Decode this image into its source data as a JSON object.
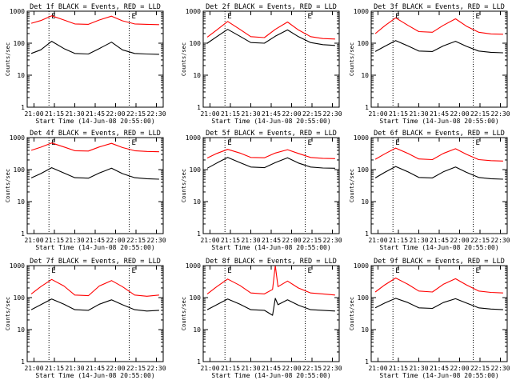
{
  "colors": {
    "events": "#000000",
    "lld": "#ff0000",
    "frame": "#000000",
    "background": "#ffffff"
  },
  "common": {
    "xlabel": "Start Time (14-Jun-08 20:55:00)",
    "ylabel": "Counts/sec",
    "x_tick_labels": [
      "21:00",
      "21:15",
      "21:30",
      "21:45",
      "22:00",
      "22:15",
      "22:30"
    ],
    "y_tick_labels": [
      "1",
      "10",
      "100",
      "1000"
    ],
    "marker_label": "E"
  },
  "chart_data": [
    {
      "type": "line",
      "title": "Det 1f BLACK = Events, RED = LLD",
      "xlim": [
        "20:55",
        "22:35"
      ],
      "ylim": [
        1,
        1000
      ],
      "y_scale": "log",
      "grid": false,
      "event_markers": [
        "21:11",
        "22:10"
      ],
      "series": [
        {
          "color": "#ff0000",
          "x": [
            "20:58",
            "21:05",
            "21:13",
            "21:22",
            "21:30",
            "21:40",
            "21:48",
            "21:57",
            "22:05",
            "22:14",
            "22:23",
            "22:32"
          ],
          "values": [
            420,
            510,
            720,
            530,
            400,
            390,
            530,
            700,
            500,
            400,
            390,
            380
          ]
        },
        {
          "color": "#000000",
          "x": [
            "20:58",
            "21:05",
            "21:13",
            "21:22",
            "21:30",
            "21:40",
            "21:48",
            "21:57",
            "22:05",
            "22:14",
            "22:23",
            "22:32"
          ],
          "values": [
            48,
            62,
            115,
            68,
            48,
            46,
            68,
            108,
            62,
            48,
            46,
            45
          ]
        }
      ]
    },
    {
      "type": "line",
      "title": "Det 2f BLACK = Events, RED = LLD",
      "xlim": [
        "20:55",
        "22:35"
      ],
      "ylim": [
        1,
        1000
      ],
      "y_scale": "log",
      "grid": false,
      "event_markers": [
        "21:11",
        "22:10"
      ],
      "series": [
        {
          "color": "#ff0000",
          "x": [
            "20:58",
            "21:05",
            "21:13",
            "21:22",
            "21:30",
            "21:40",
            "21:48",
            "21:57",
            "22:05",
            "22:14",
            "22:23",
            "22:32"
          ],
          "values": [
            155,
            260,
            480,
            270,
            160,
            150,
            270,
            460,
            260,
            160,
            140,
            135
          ]
        },
        {
          "color": "#000000",
          "x": [
            "20:58",
            "21:05",
            "21:13",
            "21:22",
            "21:30",
            "21:40",
            "21:48",
            "21:57",
            "22:05",
            "22:14",
            "22:23",
            "22:32"
          ],
          "values": [
            100,
            160,
            270,
            165,
            105,
            100,
            165,
            260,
            160,
            105,
            90,
            85
          ]
        }
      ]
    },
    {
      "type": "line",
      "title": "Det 3f BLACK = Events, RED = LLD",
      "xlim": [
        "20:55",
        "22:35"
      ],
      "ylim": [
        1,
        1000
      ],
      "y_scale": "log",
      "grid": false,
      "event_markers": [
        "21:11",
        "22:10"
      ],
      "series": [
        {
          "color": "#ff0000",
          "x": [
            "20:58",
            "21:05",
            "21:13",
            "21:22",
            "21:30",
            "21:40",
            "21:48",
            "21:57",
            "22:05",
            "22:14",
            "22:23",
            "22:32"
          ],
          "values": [
            200,
            350,
            620,
            360,
            230,
            220,
            360,
            580,
            340,
            220,
            195,
            190
          ]
        },
        {
          "color": "#000000",
          "x": [
            "20:58",
            "21:05",
            "21:13",
            "21:22",
            "21:30",
            "21:40",
            "21:48",
            "21:57",
            "22:05",
            "22:14",
            "22:23",
            "22:32"
          ],
          "values": [
            55,
            80,
            120,
            82,
            57,
            55,
            82,
            115,
            80,
            57,
            52,
            50
          ]
        }
      ]
    },
    {
      "type": "line",
      "title": "Det 4f BLACK = Events, RED = LLD",
      "xlim": [
        "20:55",
        "22:35"
      ],
      "ylim": [
        1,
        1000
      ],
      "y_scale": "log",
      "grid": false,
      "event_markers": [
        "21:11",
        "22:10"
      ],
      "series": [
        {
          "color": "#ff0000",
          "x": [
            "20:58",
            "21:05",
            "21:13",
            "21:22",
            "21:30",
            "21:40",
            "21:48",
            "21:57",
            "22:05",
            "22:14",
            "22:23",
            "22:32"
          ],
          "values": [
            400,
            500,
            680,
            510,
            390,
            380,
            510,
            660,
            490,
            390,
            370,
            360
          ]
        },
        {
          "color": "#000000",
          "x": [
            "20:58",
            "21:05",
            "21:13",
            "21:22",
            "21:30",
            "21:40",
            "21:48",
            "21:57",
            "22:05",
            "22:14",
            "22:23",
            "22:32"
          ],
          "values": [
            55,
            75,
            115,
            78,
            56,
            54,
            78,
            110,
            75,
            56,
            52,
            50
          ]
        }
      ]
    },
    {
      "type": "line",
      "title": "Det 5f BLACK = Events, RED = LLD",
      "xlim": [
        "20:55",
        "22:35"
      ],
      "ylim": [
        1,
        1000
      ],
      "y_scale": "log",
      "grid": false,
      "event_markers": [
        "21:11",
        "22:10"
      ],
      "series": [
        {
          "color": "#ff0000",
          "x": [
            "20:58",
            "21:05",
            "21:13",
            "21:22",
            "21:30",
            "21:40",
            "21:48",
            "21:57",
            "22:05",
            "22:14",
            "22:23",
            "22:32"
          ],
          "values": [
            230,
            320,
            430,
            330,
            240,
            235,
            330,
            420,
            320,
            240,
            225,
            220
          ]
        },
        {
          "color": "#000000",
          "x": [
            "20:58",
            "21:05",
            "21:13",
            "21:22",
            "21:30",
            "21:40",
            "21:48",
            "21:57",
            "22:05",
            "22:14",
            "22:23",
            "22:32"
          ],
          "values": [
            110,
            160,
            240,
            165,
            120,
            115,
            165,
            235,
            160,
            120,
            112,
            110
          ]
        }
      ]
    },
    {
      "type": "line",
      "title": "Det 6f BLACK = Events, RED = LLD",
      "xlim": [
        "20:55",
        "22:35"
      ],
      "ylim": [
        1,
        1000
      ],
      "y_scale": "log",
      "grid": false,
      "event_markers": [
        "21:11",
        "22:10"
      ],
      "series": [
        {
          "color": "#ff0000",
          "x": [
            "20:58",
            "21:05",
            "21:13",
            "21:22",
            "21:30",
            "21:40",
            "21:48",
            "21:57",
            "22:05",
            "22:14",
            "22:23",
            "22:32"
          ],
          "values": [
            210,
            310,
            470,
            320,
            215,
            205,
            320,
            450,
            300,
            205,
            190,
            185
          ]
        },
        {
          "color": "#000000",
          "x": [
            "20:58",
            "21:05",
            "21:13",
            "21:22",
            "21:30",
            "21:40",
            "21:48",
            "21:57",
            "22:05",
            "22:14",
            "22:23",
            "22:32"
          ],
          "values": [
            55,
            82,
            125,
            85,
            57,
            55,
            85,
            120,
            82,
            57,
            52,
            50
          ]
        }
      ]
    },
    {
      "type": "line",
      "title": "Det 7f BLACK = Events, RED = LLD",
      "xlim": [
        "20:55",
        "22:35"
      ],
      "ylim": [
        1,
        1000
      ],
      "y_scale": "log",
      "grid": false,
      "event_markers": [
        "21:11",
        "22:10"
      ],
      "series": [
        {
          "color": "#ff0000",
          "x": [
            "20:58",
            "21:05",
            "21:13",
            "21:22",
            "21:30",
            "21:40",
            "21:48",
            "21:57",
            "22:05",
            "22:14",
            "22:23",
            "22:32"
          ],
          "values": [
            130,
            220,
            370,
            230,
            120,
            115,
            230,
            340,
            220,
            120,
            110,
            120
          ]
        },
        {
          "color": "#000000",
          "x": [
            "20:58",
            "21:05",
            "21:13",
            "21:22",
            "21:30",
            "21:40",
            "21:48",
            "21:57",
            "22:05",
            "22:14",
            "22:23",
            "22:32"
          ],
          "values": [
            42,
            60,
            90,
            62,
            42,
            40,
            62,
            85,
            60,
            42,
            38,
            40
          ]
        }
      ]
    },
    {
      "type": "line",
      "title": "Det 8f BLACK = Events, RED = LLD",
      "xlim": [
        "20:55",
        "22:35"
      ],
      "ylim": [
        1,
        1000
      ],
      "y_scale": "log",
      "grid": false,
      "event_markers": [
        "21:11",
        "22:10"
      ],
      "series": [
        {
          "color": "#ff0000",
          "x": [
            "20:58",
            "21:05",
            "21:13",
            "21:22",
            "21:30",
            "21:40",
            "21:46",
            "21:48",
            "21:50",
            "21:57",
            "22:05",
            "22:14",
            "22:23",
            "22:32"
          ],
          "values": [
            130,
            220,
            380,
            240,
            140,
            130,
            180,
            1000,
            220,
            330,
            200,
            140,
            130,
            120
          ]
        },
        {
          "color": "#000000",
          "x": [
            "20:58",
            "21:05",
            "21:13",
            "21:22",
            "21:30",
            "21:40",
            "21:46",
            "21:48",
            "21:50",
            "21:57",
            "22:05",
            "22:14",
            "22:23",
            "22:32"
          ],
          "values": [
            42,
            60,
            90,
            62,
            42,
            40,
            28,
            95,
            60,
            85,
            58,
            42,
            40,
            38
          ]
        }
      ]
    },
    {
      "type": "line",
      "title": "Det 9f BLACK = Events, RED = LLD",
      "xlim": [
        "20:55",
        "22:35"
      ],
      "ylim": [
        1,
        1000
      ],
      "y_scale": "log",
      "grid": false,
      "event_markers": [
        "21:11",
        "22:10"
      ],
      "series": [
        {
          "color": "#ff0000",
          "x": [
            "20:58",
            "21:05",
            "21:13",
            "21:22",
            "21:30",
            "21:40",
            "21:48",
            "21:57",
            "22:05",
            "22:14",
            "22:23",
            "22:32"
          ],
          "values": [
            150,
            250,
            410,
            260,
            160,
            150,
            260,
            390,
            250,
            160,
            145,
            140
          ]
        },
        {
          "color": "#000000",
          "x": [
            "20:58",
            "21:05",
            "21:13",
            "21:22",
            "21:30",
            "21:40",
            "21:48",
            "21:57",
            "22:05",
            "22:14",
            "22:23",
            "22:32"
          ],
          "values": [
            48,
            68,
            95,
            70,
            48,
            46,
            70,
            92,
            68,
            48,
            44,
            42
          ]
        }
      ]
    }
  ]
}
